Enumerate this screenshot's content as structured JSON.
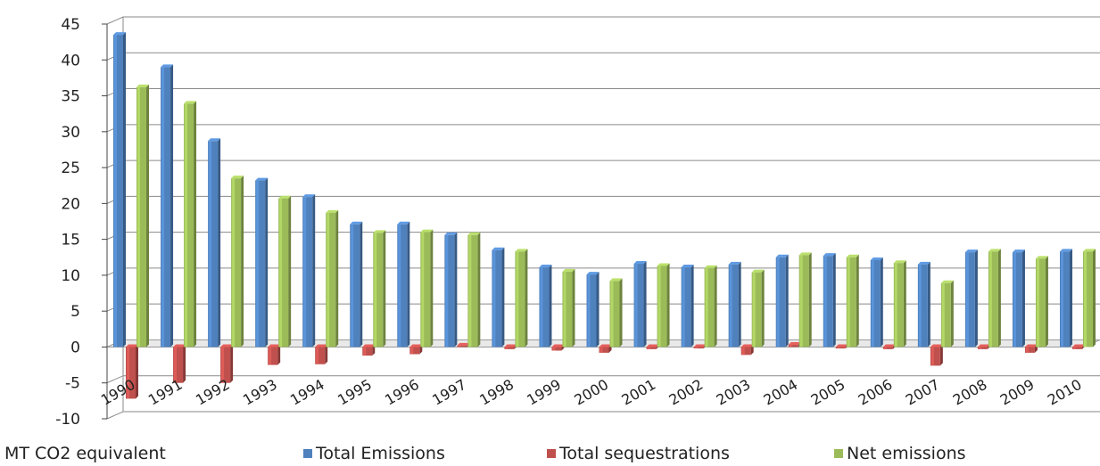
{
  "chart_data": {
    "type": "bar",
    "title": "",
    "xlabel": "",
    "ylabel": "",
    "unit_label": "MT CO2 equivalent",
    "ylim": [
      -10,
      45
    ],
    "yticks": [
      45,
      40,
      35,
      30,
      25,
      20,
      15,
      10,
      5,
      0,
      -5,
      -10
    ],
    "grid": true,
    "legend_position": "bottom",
    "categories": [
      "1990",
      "1991",
      "1992",
      "1993",
      "1994",
      "1995",
      "1996",
      "1997",
      "1998",
      "1999",
      "2000",
      "2001",
      "2002",
      "2003",
      "2004",
      "2005",
      "2006",
      "2007",
      "2008",
      "2009",
      "2010"
    ],
    "series": [
      {
        "name": "Total Emissions",
        "color": "#4f81bd",
        "values": [
          43.5,
          39.0,
          28.7,
          23.2,
          20.9,
          17.1,
          17.1,
          15.6,
          13.5,
          11.1,
          10.1,
          11.6,
          11.1,
          11.5,
          12.5,
          12.7,
          12.1,
          11.5,
          13.2,
          13.2,
          13.3
        ]
      },
      {
        "name": "Total sequestrations",
        "color": "#c0504d",
        "values": [
          -7.2,
          -5.0,
          -5.0,
          -2.5,
          -2.4,
          -1.2,
          -1.0,
          0.2,
          -0.3,
          -0.5,
          -0.8,
          -0.3,
          -0.2,
          -1.1,
          0.3,
          -0.2,
          -0.3,
          -2.6,
          -0.3,
          -0.8,
          -0.3
        ]
      },
      {
        "name": "Net emissions",
        "color": "#9bbb59",
        "values": [
          36.2,
          33.9,
          23.5,
          20.7,
          18.7,
          15.9,
          16.0,
          15.6,
          13.3,
          10.5,
          9.2,
          11.3,
          11.0,
          10.4,
          12.8,
          12.5,
          11.7,
          8.9,
          13.3,
          12.3,
          13.3
        ]
      }
    ]
  }
}
